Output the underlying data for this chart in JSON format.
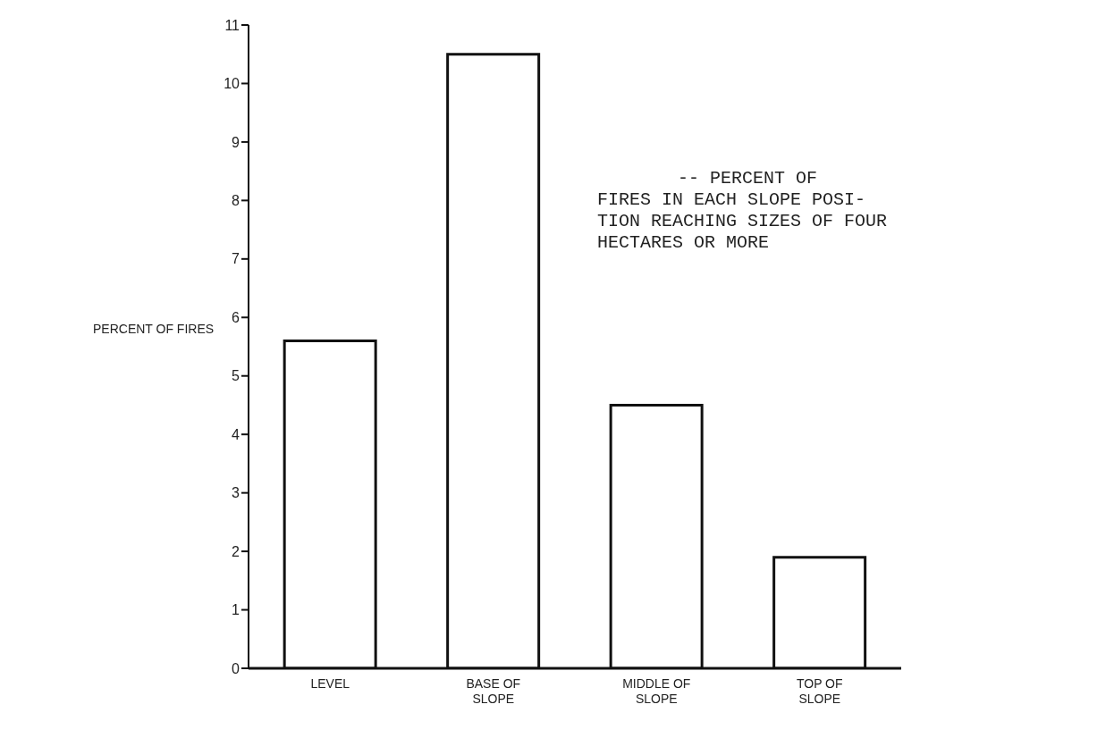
{
  "chart_data": {
    "type": "bar",
    "ylabel": "PERCENT OF FIRES",
    "categories": [
      "LEVEL",
      "BASE OF SLOPE",
      "MIDDLE OF SLOPE",
      "TOP OF SLOPE"
    ],
    "values": [
      5.6,
      10.5,
      4.5,
      1.9
    ],
    "color": "#ffffff",
    "ylim": [
      0,
      11
    ],
    "yticks": [
      0,
      1,
      2,
      3,
      4,
      5,
      6,
      7,
      8,
      9,
      10,
      11
    ],
    "grid": false,
    "legend": false,
    "annotations": [
      "-- PERCENT OF\nFIRES IN EACH SLOPE POSI-\nTION REACHING SIZES OF FOUR\nHECTARES OR MORE"
    ]
  }
}
